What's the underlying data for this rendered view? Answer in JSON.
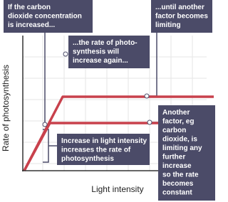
{
  "axes": {
    "y_label": "Rate of photosynthesis",
    "x_label": "Light intensity"
  },
  "annotations": [
    {
      "lines": [
        "If the carbon",
        "dioxide concentration",
        "is increased..."
      ]
    },
    {
      "lines": [
        "...until another",
        "factor becomes",
        "limiting"
      ]
    },
    {
      "lines": [
        "...the rate of photo-",
        "synthesis will",
        "increase again..."
      ]
    },
    {
      "lines": [
        "Increase in light intensity",
        "increases the rate of",
        "photosynthesis"
      ]
    },
    {
      "lines": [
        "Another",
        "factor, eg",
        "carbon",
        "dioxide, is",
        "limiting any",
        "further",
        "increase",
        "so the rate",
        "becomes",
        "constant"
      ]
    }
  ]
}
